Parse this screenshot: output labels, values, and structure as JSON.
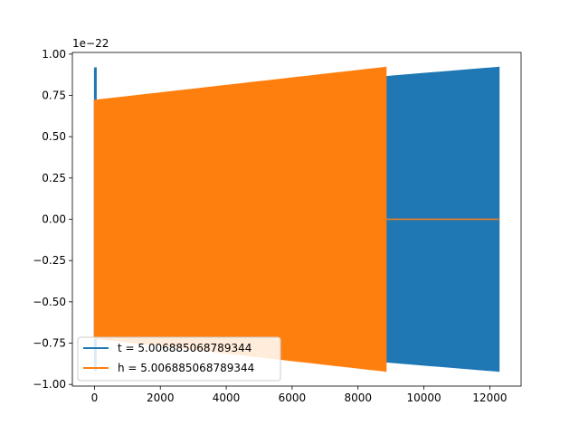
{
  "chart_data": {
    "type": "line",
    "title": "",
    "xlabel": "",
    "ylabel": "",
    "y_offset_text": "1e−22",
    "xlim": [
      -670,
      12950
    ],
    "ylim": [
      -1.01,
      1.01
    ],
    "x_ticks": [
      0,
      2000,
      4000,
      6000,
      8000,
      10000,
      12000
    ],
    "x_tick_labels": [
      "0",
      "2000",
      "4000",
      "6000",
      "8000",
      "10000",
      "12000"
    ],
    "y_ticks": [
      1.0,
      0.75,
      0.5,
      0.25,
      0.0,
      -0.25,
      -0.5,
      -0.75,
      -1.0
    ],
    "y_tick_labels": [
      "1.00",
      "0.75",
      "0.50",
      "0.25",
      "0.00",
      "−0.25",
      "−0.50",
      "−0.75",
      "−1.00"
    ],
    "grid": false,
    "legend_position": "lower-left",
    "series": [
      {
        "name": "t = 5.006885068789344",
        "color": "#1f77b4",
        "x_start": 0,
        "x_end": 12280,
        "envelope": {
          "x": [
            0,
            12280
          ],
          "upper": [
            0.72,
            0.92
          ],
          "lower": [
            -0.72,
            -0.92
          ]
        },
        "initial_spike": {
          "x": [
            0,
            50
          ],
          "y": [
            0.92,
            -0.92
          ]
        }
      },
      {
        "name": "h = 5.006885068789344",
        "color": "#ff7f0e",
        "x_start": 0,
        "x_end": 8850,
        "envelope": {
          "x": [
            0,
            8850
          ],
          "upper": [
            0.72,
            0.92
          ],
          "lower": [
            -0.72,
            -0.92
          ]
        },
        "tail": {
          "x": [
            8850,
            12280
          ],
          "y": 0.0
        }
      }
    ]
  }
}
